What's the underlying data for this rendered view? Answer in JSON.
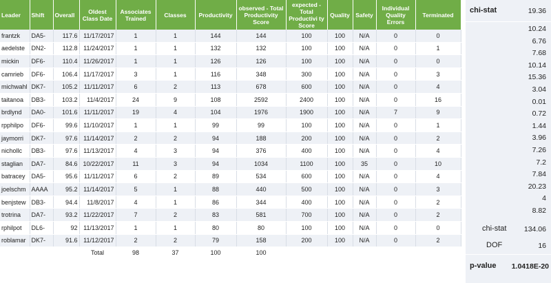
{
  "headers": {
    "leader": "Leader",
    "shift": "Shift",
    "overall": "Overall",
    "oldest": "Oldest Class Date",
    "trained": "Associates Trained",
    "classes": "Classes",
    "productivity": "Productivity",
    "observed": "observed - Total Productivity Score",
    "expected": "expected - Total Productivi ty Score",
    "quality": "Quality",
    "safety": "Safety",
    "errors": "Individual Quality Errors",
    "terminated": "Terminated"
  },
  "rows": [
    [
      "frantzk",
      "DA5-",
      "117.6",
      "11/17/2017",
      "1",
      "1",
      "144",
      "144",
      "100",
      "100",
      "N/A",
      "0",
      "0"
    ],
    [
      "aedelste",
      "DN2-",
      "112.8",
      "11/24/2017",
      "1",
      "1",
      "132",
      "132",
      "100",
      "100",
      "N/A",
      "0",
      "1"
    ],
    [
      "mickin",
      "DF6-",
      "110.4",
      "11/26/2017",
      "1",
      "1",
      "126",
      "126",
      "100",
      "100",
      "N/A",
      "0",
      "0"
    ],
    [
      "camrieb",
      "DF6-",
      "106.4",
      "11/17/2017",
      "3",
      "1",
      "116",
      "348",
      "300",
      "100",
      "N/A",
      "0",
      "3"
    ],
    [
      "michwahl",
      "DK7-",
      "105.2",
      "11/11/2017",
      "6",
      "2",
      "113",
      "678",
      "600",
      "100",
      "N/A",
      "0",
      "4"
    ],
    [
      "taitanoa",
      "DB3-",
      "103.2",
      "11/4/2017",
      "24",
      "9",
      "108",
      "2592",
      "2400",
      "100",
      "N/A",
      "0",
      "16"
    ],
    [
      "brdlynd",
      "DA0-",
      "101.6",
      "11/11/2017",
      "19",
      "4",
      "104",
      "1976",
      "1900",
      "100",
      "N/A",
      "7",
      "9"
    ],
    [
      "rpphilpo",
      "DF6-",
      "99.6",
      "11/10/2017",
      "1",
      "1",
      "99",
      "99",
      "100",
      "100",
      "N/A",
      "0",
      "1"
    ],
    [
      "jaymorri",
      "DK7-",
      "97.6",
      "11/14/2017",
      "2",
      "2",
      "94",
      "188",
      "200",
      "100",
      "N/A",
      "0",
      "2"
    ],
    [
      "nichollc",
      "DB3-",
      "97.6",
      "11/13/2017",
      "4",
      "3",
      "94",
      "376",
      "400",
      "100",
      "N/A",
      "0",
      "4"
    ],
    [
      "staglian",
      "DA7-",
      "84.6",
      "10/22/2017",
      "11",
      "3",
      "94",
      "1034",
      "1100",
      "100",
      "35",
      "0",
      "10"
    ],
    [
      "batracey",
      "DA5-",
      "95.6",
      "11/11/2017",
      "6",
      "2",
      "89",
      "534",
      "600",
      "100",
      "N/A",
      "0",
      "4"
    ],
    [
      "joelschm",
      "AAAA",
      "95.2",
      "11/14/2017",
      "5",
      "1",
      "88",
      "440",
      "500",
      "100",
      "N/A",
      "0",
      "3"
    ],
    [
      "benjstew",
      "DB3-",
      "94.4",
      "11/8/2017",
      "4",
      "1",
      "86",
      "344",
      "400",
      "100",
      "N/A",
      "0",
      "2"
    ],
    [
      "trotrina",
      "DA7-",
      "93.2",
      "11/22/2017",
      "7",
      "2",
      "83",
      "581",
      "700",
      "100",
      "N/A",
      "0",
      "2"
    ],
    [
      "rphilpot",
      "DL6-",
      "92",
      "11/13/2017",
      "1",
      "1",
      "80",
      "80",
      "100",
      "100",
      "N/A",
      "0",
      "0"
    ],
    [
      "roblamar",
      "DK7-",
      "91.6",
      "11/12/2017",
      "2",
      "2",
      "79",
      "158",
      "200",
      "100",
      "N/A",
      "0",
      "2"
    ]
  ],
  "totals": {
    "label": "Total",
    "trained": "98",
    "classes": "37",
    "productivity": "100",
    "observed": "100"
  },
  "side": {
    "chi_stat_label": "chi-stat",
    "chi_stat_first": "19.36",
    "values": [
      "10.24",
      "6.76",
      "7.68",
      "10.14",
      "15.36",
      "3.04",
      "0.01",
      "0.72",
      "1.44",
      "3.96",
      "7.26",
      "7.2",
      "7.84",
      "20.23",
      "4",
      "8.82"
    ],
    "chi_stat_total_label": "chi-stat",
    "chi_stat_total": "134.06",
    "dof_label": "DOF",
    "dof": "16",
    "pvalue_label": "p-value",
    "pvalue": "1.0418E-20"
  },
  "colors": {
    "header_bg": "#70ad47",
    "band": "#eef1f6"
  }
}
